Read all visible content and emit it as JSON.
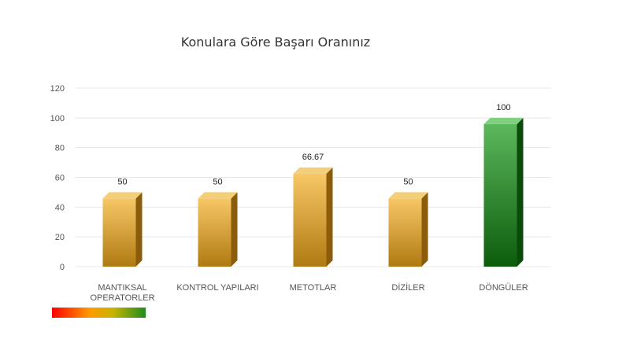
{
  "chart_data": {
    "type": "bar",
    "title": "Konulara Göre Başarı Oranınız",
    "categories": [
      [
        "MANTIKSAL",
        "OPERATORLER"
      ],
      [
        "KONTROL YAPILARI"
      ],
      [
        "METOTLAR"
      ],
      [
        "DİZİLER"
      ],
      [
        "DÖNGÜLER"
      ]
    ],
    "values": [
      50,
      50,
      66.67,
      50,
      100
    ],
    "data_labels": [
      "50",
      "50",
      "66.67",
      "50",
      "100"
    ],
    "ylim": [
      0,
      120
    ],
    "yticks": [
      0,
      20,
      40,
      60,
      80,
      100,
      120
    ],
    "grid": true,
    "bar_styles": [
      "gold",
      "gold",
      "gold",
      "gold",
      "green"
    ]
  },
  "colors": {
    "gold_top": "#f2cf78",
    "gold_front_light": "#f7c766",
    "gold_front_dark": "#b07a12",
    "gold_side": "#8a5c0c",
    "green_top": "#7fd07f",
    "green_front_light": "#5cb85c",
    "green_front_dark": "#0c5c0c",
    "green_side": "#0b4a0b",
    "gridline": "#e8e8e8",
    "axis_text": "#555555",
    "legend_gradient": [
      "#ff0000",
      "#ff9900",
      "#c8b400",
      "#1e8c1e"
    ]
  }
}
